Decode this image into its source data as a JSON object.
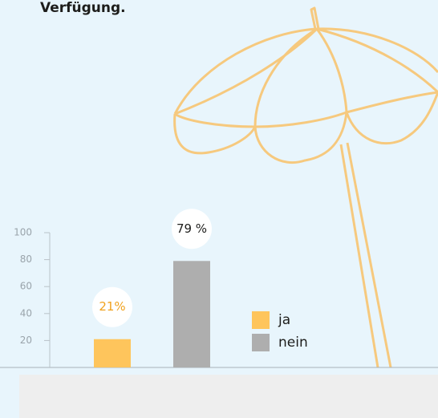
{
  "chart_data": {
    "type": "bar",
    "title": "Verfügung.",
    "categories": [
      "ja",
      "nein"
    ],
    "values": [
      21,
      79
    ],
    "value_labels": [
      "21%",
      "79 %"
    ],
    "colors": [
      "#fec55c",
      "#aeaeae"
    ],
    "ylim": [
      0,
      100
    ],
    "yticks": [
      20,
      40,
      60,
      80,
      100
    ]
  }
}
